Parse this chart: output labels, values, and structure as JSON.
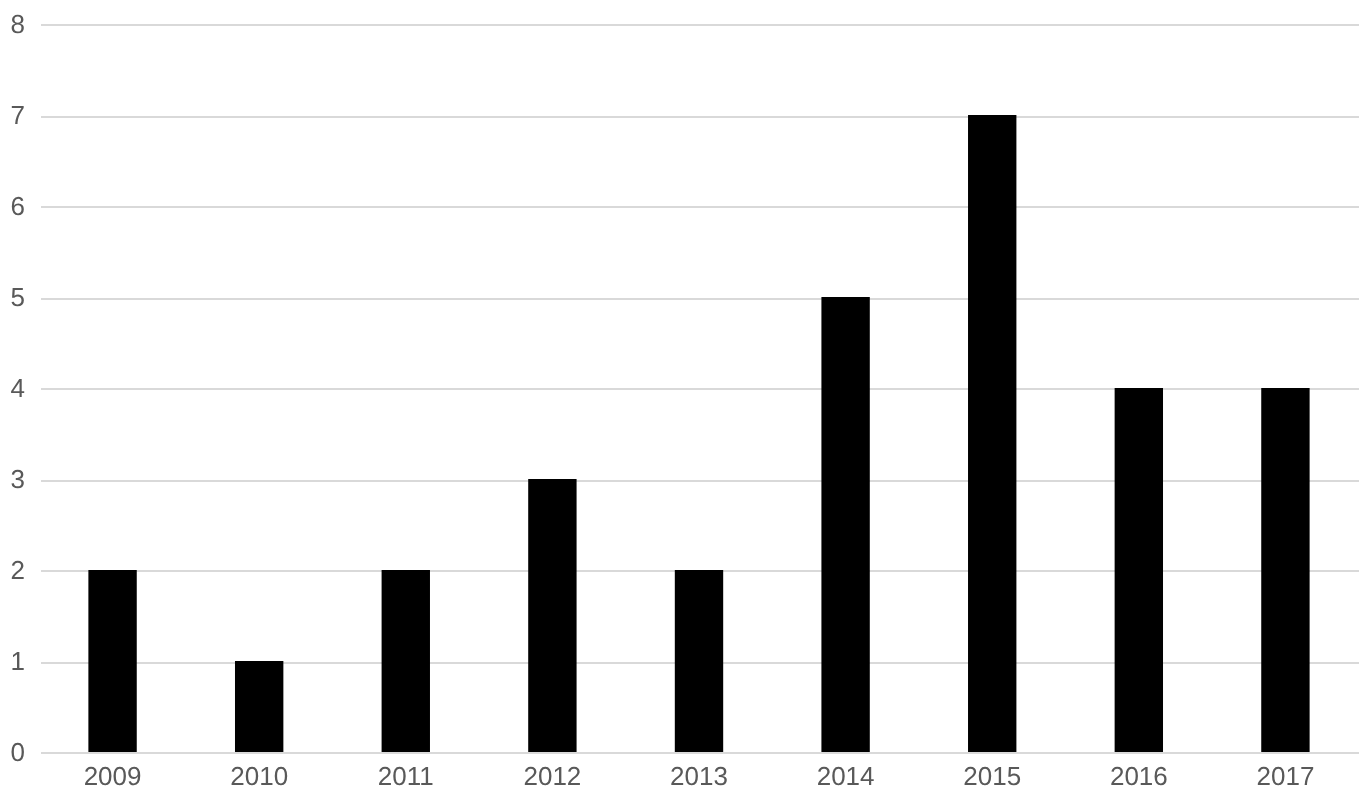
{
  "chart_data": {
    "type": "bar",
    "categories": [
      "2009",
      "2010",
      "2011",
      "2012",
      "2013",
      "2014",
      "2015",
      "2016",
      "2017"
    ],
    "values": [
      2,
      1,
      2,
      3,
      2,
      5,
      7,
      4,
      4
    ],
    "color": "#000000",
    "ylim": [
      0,
      8
    ],
    "yticks": [
      0,
      1,
      2,
      3,
      4,
      5,
      6,
      7,
      8
    ],
    "grid": "y"
  }
}
